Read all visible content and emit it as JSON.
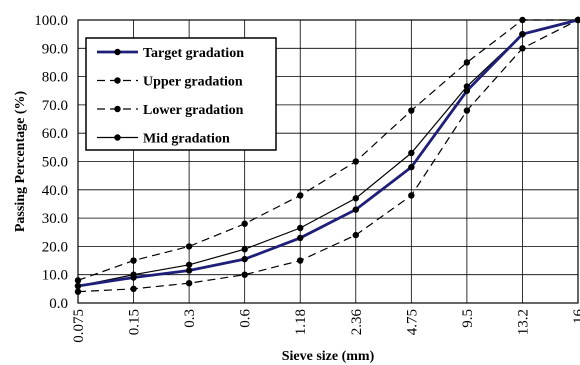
{
  "chart_data": {
    "type": "line",
    "title": "",
    "xlabel": "Sieve size (mm)",
    "ylabel": "Passing Percentage (%)",
    "x_ticks": [
      "0.075",
      "0.15",
      "0.3",
      "0.6",
      "1.18",
      "2.36",
      "4.75",
      "9.5",
      "13.2",
      "16"
    ],
    "y_ticks": [
      "0.0",
      "10.0",
      "20.0",
      "30.0",
      "40.0",
      "50.0",
      "60.0",
      "70.0",
      "80.0",
      "90.0",
      "100.0"
    ],
    "ylim": [
      0,
      100
    ],
    "grid": true,
    "legend_position": "top-left",
    "series": [
      {
        "name": "Target gradation",
        "color": "#1f1f7a",
        "style": "solid-thick",
        "values": [
          6,
          9,
          11.5,
          15.5,
          23,
          33,
          48,
          75,
          95,
          100
        ]
      },
      {
        "name": "Upper gradation",
        "color": "#000000",
        "style": "dashed",
        "values": [
          8,
          15,
          20,
          28,
          38,
          50,
          68,
          85,
          100,
          100
        ]
      },
      {
        "name": "Lower gradation",
        "color": "#000000",
        "style": "dashed",
        "values": [
          4,
          5,
          7,
          10,
          15,
          24,
          38,
          68,
          90,
          100
        ]
      },
      {
        "name": "Mid gradation",
        "color": "#000000",
        "style": "solid",
        "values": [
          6,
          10,
          13.5,
          19,
          26.5,
          37,
          53,
          76.5,
          95,
          100
        ]
      }
    ]
  }
}
